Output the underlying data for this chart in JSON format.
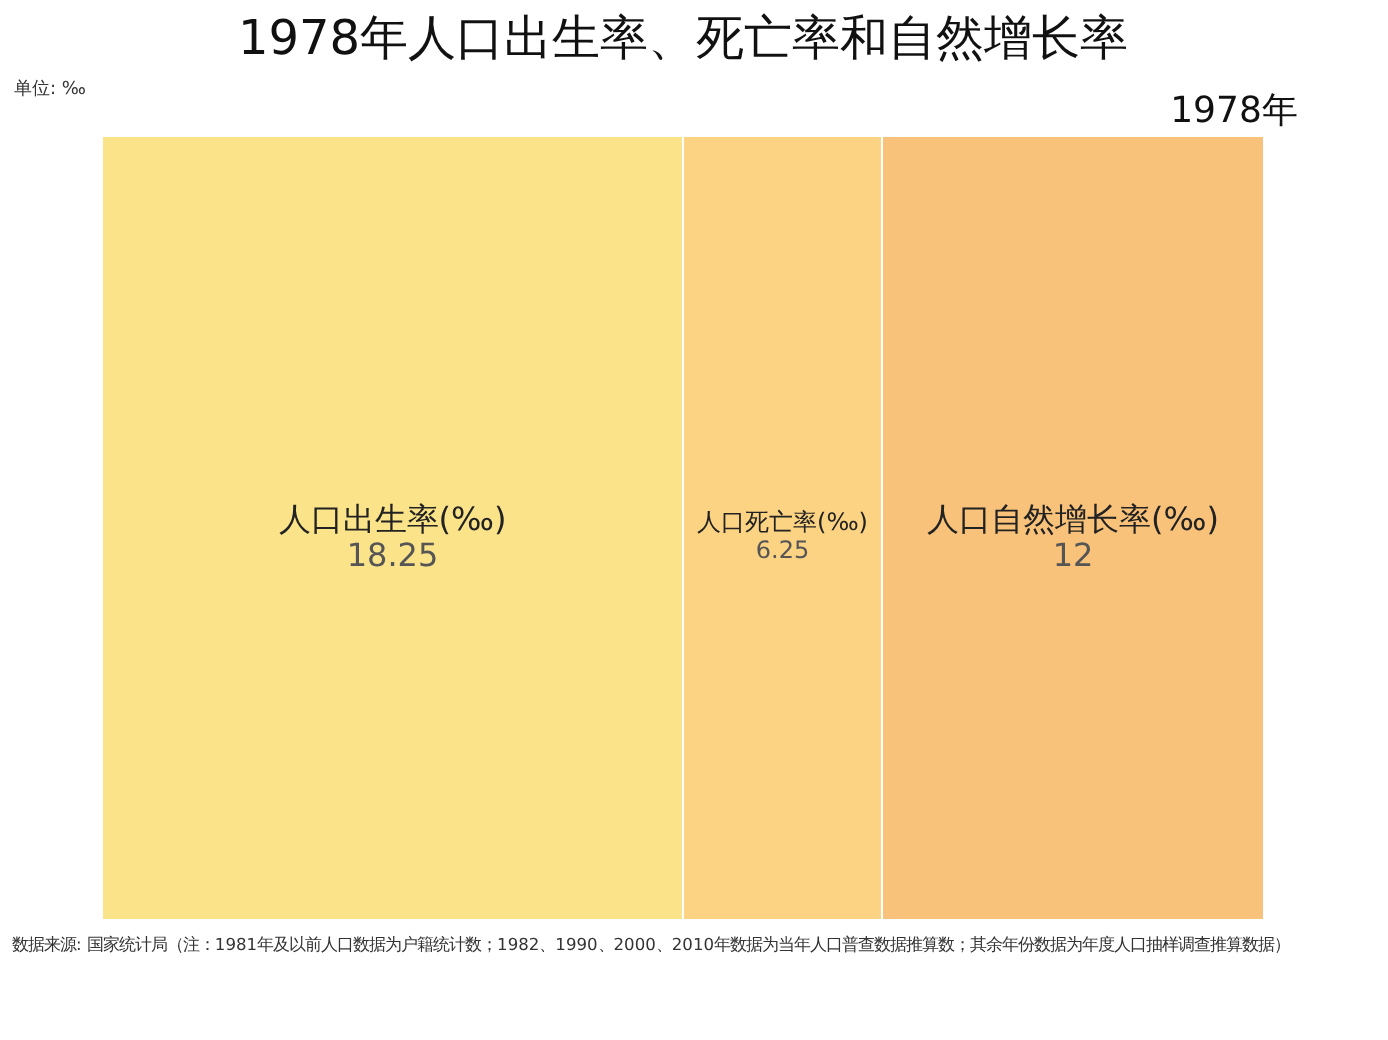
{
  "chart_data": {
    "type": "other",
    "title": "1978年人口出生率、死亡率和自然增长率",
    "categories": [
      "人口出生率(‰)",
      "人口死亡率(‰)",
      "人口自然增长率(‰)"
    ],
    "values": [
      18.25,
      6.25,
      12
    ],
    "colors": [
      "#fbe38a",
      "#fcd283",
      "#f9c27a"
    ],
    "data_labels": true,
    "annotations": [
      "单位: ‰",
      "1978年",
      "数据来源: 国家统计局（注：1981年及以前人口数据为户籍统计数；1982、1990、2000、2010年数据为当年人口普查数据推算数；其余年份数据为年度人口抽样调查推算数据）"
    ]
  }
}
